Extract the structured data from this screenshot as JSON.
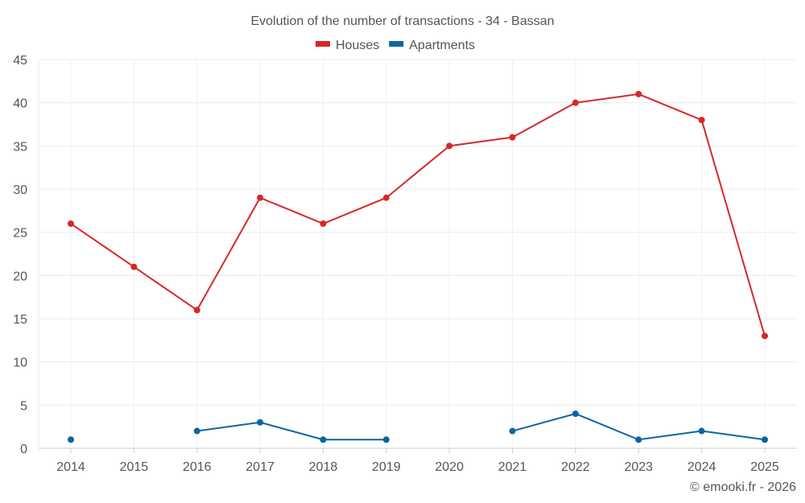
{
  "chart_data": {
    "type": "line",
    "title": "Evolution of the number of transactions - 34 - Bassan",
    "xlabel": "",
    "ylabel": "",
    "categories": [
      "2014",
      "2015",
      "2016",
      "2017",
      "2018",
      "2019",
      "2020",
      "2021",
      "2022",
      "2023",
      "2024",
      "2025"
    ],
    "ylim": [
      0,
      45
    ],
    "yticks": [
      "0",
      "5",
      "10",
      "15",
      "20",
      "25",
      "30",
      "35",
      "40",
      "45"
    ],
    "grid": true,
    "legend_position": "top-center",
    "series": [
      {
        "name": "Houses",
        "color": "#d62728",
        "values": [
          26,
          21,
          16,
          29,
          26,
          29,
          35,
          36,
          40,
          41,
          38,
          13
        ]
      },
      {
        "name": "Apartments",
        "color": "#0b66a0",
        "values": [
          1,
          null,
          2,
          3,
          1,
          1,
          null,
          2,
          4,
          1,
          2,
          1
        ]
      }
    ]
  },
  "footer": {
    "credit": "© emooki.fr - 2026"
  }
}
